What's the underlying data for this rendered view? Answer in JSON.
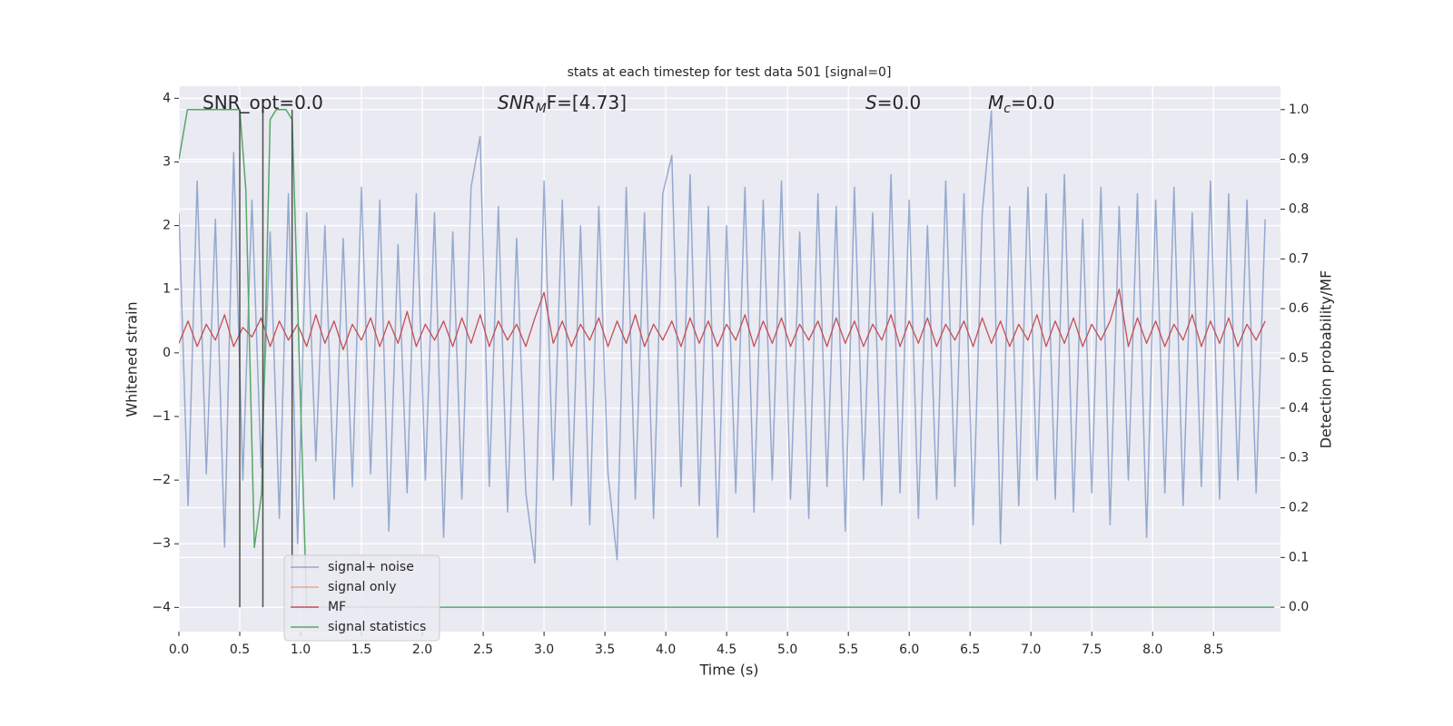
{
  "chart_data": {
    "type": "line",
    "title": "stats at each timestep for test data 501 [signal=0]",
    "xlabel": "Time (s)",
    "ylabel": "Whitened strain",
    "y2label": "Detection probability/MF",
    "grid": true,
    "legend": "lower left",
    "xlim": [
      0,
      9.05
    ],
    "ylim": [
      -4.38,
      4.19
    ],
    "y2lim": [
      -0.049,
      1.047
    ],
    "xticks": [
      {
        "value": 0,
        "label": "0.0"
      },
      {
        "value": 0.5,
        "label": "0.5"
      },
      {
        "value": 1,
        "label": "1.0"
      },
      {
        "value": 1.5,
        "label": "1.5"
      },
      {
        "value": 2,
        "label": "2.0"
      },
      {
        "value": 2.5,
        "label": "2.5"
      },
      {
        "value": 3,
        "label": "3.0"
      },
      {
        "value": 3.5,
        "label": "3.5"
      },
      {
        "value": 4,
        "label": "4.0"
      },
      {
        "value": 4.5,
        "label": "4.5"
      },
      {
        "value": 5,
        "label": "5.0"
      },
      {
        "value": 5.5,
        "label": "5.5"
      },
      {
        "value": 6,
        "label": "6.0"
      },
      {
        "value": 6.5,
        "label": "6.5"
      },
      {
        "value": 7,
        "label": "7.0"
      },
      {
        "value": 7.5,
        "label": "7.5"
      },
      {
        "value": 8,
        "label": "8.0"
      },
      {
        "value": 8.5,
        "label": "8.5"
      }
    ],
    "yticks": [
      {
        "value": -4,
        "label": "−4"
      },
      {
        "value": -3,
        "label": "−3"
      },
      {
        "value": -2,
        "label": "−2"
      },
      {
        "value": -1,
        "label": "−1"
      },
      0,
      1,
      2,
      3,
      4
    ],
    "y2ticks": [
      {
        "value": 0,
        "label": "0.0"
      },
      {
        "value": 0.1,
        "label": "0.1"
      },
      {
        "value": 0.2,
        "label": "0.2"
      },
      {
        "value": 0.3,
        "label": "0.3"
      },
      {
        "value": 0.4,
        "label": "0.4"
      },
      {
        "value": 0.5,
        "label": "0.5"
      },
      {
        "value": 0.6,
        "label": "0.6"
      },
      {
        "value": 0.7,
        "label": "0.7"
      },
      {
        "value": 0.8,
        "label": "0.8"
      },
      {
        "value": 0.9,
        "label": "0.9"
      },
      {
        "value": 1,
        "label": "1.0"
      }
    ],
    "annotations": [
      {
        "main": "SNR_opt=0.0",
        "italic": false
      },
      {
        "main": "SNR",
        "sub": "M",
        "rest": "F=[4.73]",
        "italic": true
      },
      {
        "main": "S",
        "rest": "=0.0",
        "italic": true
      },
      {
        "main": "M",
        "sub": "c",
        "rest": "=0.0",
        "italic": true
      }
    ],
    "vlines": {
      "x": [
        0.5,
        0.69,
        0.93
      ],
      "ymin": 0,
      "ymax": 1,
      "color": "#333333",
      "axis": "y2"
    },
    "x": [
      0,
      0.075,
      0.15,
      0.225,
      0.3,
      0.375,
      0.45,
      0.525,
      0.6,
      0.675,
      0.75,
      0.825,
      0.9,
      0.975,
      1.05,
      1.125,
      1.2,
      1.275,
      1.35,
      1.425,
      1.5,
      1.575,
      1.65,
      1.725,
      1.8,
      1.875,
      1.95,
      2.025,
      2.1,
      2.175,
      2.25,
      2.325,
      2.4,
      2.475,
      2.55,
      2.625,
      2.7,
      2.775,
      2.85,
      2.925,
      3,
      3.075,
      3.15,
      3.225,
      3.3,
      3.375,
      3.45,
      3.525,
      3.6,
      3.675,
      3.75,
      3.825,
      3.9,
      3.975,
      4.05,
      4.125,
      4.2,
      4.275,
      4.35,
      4.425,
      4.5,
      4.575,
      4.65,
      4.725,
      4.8,
      4.875,
      4.95,
      5.025,
      5.1,
      5.175,
      5.25,
      5.325,
      5.4,
      5.475,
      5.55,
      5.625,
      5.7,
      5.775,
      5.85,
      5.925,
      6,
      6.075,
      6.15,
      6.225,
      6.3,
      6.375,
      6.45,
      6.525,
      6.6,
      6.675,
      6.75,
      6.825,
      6.9,
      6.975,
      7.05,
      7.125,
      7.2,
      7.275,
      7.35,
      7.425,
      7.5,
      7.575,
      7.65,
      7.725,
      7.8,
      7.875,
      7.95,
      8.025,
      8.1,
      8.175,
      8.25,
      8.325,
      8.4,
      8.475,
      8.55,
      8.625,
      8.7,
      8.775,
      8.85,
      8.925
    ],
    "series": [
      {
        "name": "signal+ noise",
        "color": "#4c72b0",
        "values": [
          2.2,
          -2.4,
          2.7,
          -1.9,
          2.1,
          -3.05,
          3.15,
          -2.0,
          2.4,
          -1.8,
          1.9,
          -2.6,
          2.5,
          -3.0,
          2.2,
          -1.7,
          2.0,
          -2.3,
          1.8,
          -2.1,
          2.6,
          -1.9,
          2.4,
          -2.8,
          1.7,
          -2.2,
          2.5,
          -2.0,
          2.2,
          -2.9,
          1.9,
          -2.3,
          2.6,
          3.4,
          -2.1,
          2.3,
          -2.5,
          1.8,
          -2.2,
          -3.3,
          2.7,
          -2.0,
          2.4,
          -2.4,
          2.0,
          -2.7,
          2.3,
          -1.9,
          -3.25,
          2.6,
          -2.3,
          2.2,
          -2.6,
          2.5,
          3.1,
          -2.1,
          2.8,
          -2.4,
          2.3,
          -2.9,
          2.0,
          -2.2,
          2.6,
          -2.5,
          2.4,
          -2.0,
          2.7,
          -2.3,
          1.9,
          -2.6,
          2.5,
          -2.1,
          2.3,
          -2.8,
          2.6,
          -2.0,
          2.2,
          -2.4,
          2.8,
          -2.2,
          2.4,
          -2.6,
          2.0,
          -2.3,
          2.7,
          -2.1,
          2.5,
          -2.7,
          2.2,
          3.8,
          -3.0,
          2.3,
          -2.4,
          2.6,
          -2.0,
          2.5,
          -2.3,
          2.8,
          -2.5,
          2.1,
          -2.2,
          2.6,
          -2.7,
          2.3,
          -2.0,
          2.5,
          -2.9,
          2.4,
          -2.2,
          2.6,
          -2.4,
          2.2,
          -2.1,
          2.7,
          -2.3,
          2.5,
          -2.0,
          2.4,
          -2.2,
          2.1
        ]
      },
      {
        "name": "signal only",
        "color": "#dd8452",
        "values": [
          null,
          null,
          null,
          null,
          null,
          null,
          null,
          null,
          null,
          null,
          null,
          null,
          null,
          null,
          null,
          null,
          null,
          null,
          null,
          null,
          null,
          null,
          null,
          null,
          null,
          null,
          null,
          null,
          null,
          null,
          null,
          null,
          null,
          null,
          null,
          null,
          null,
          null,
          null,
          null,
          null,
          null,
          null,
          null,
          null,
          null,
          null,
          null,
          null,
          null,
          null,
          null,
          null,
          null,
          null,
          null,
          null,
          null,
          null,
          null,
          null,
          null,
          null,
          null,
          null,
          null,
          null,
          null,
          null,
          null,
          null,
          null,
          null,
          null,
          null,
          null,
          null,
          null,
          null,
          null,
          null,
          null,
          null,
          null,
          null,
          null,
          null,
          null,
          null,
          null,
          null,
          null,
          null,
          null,
          null,
          null,
          null,
          null,
          null,
          null,
          null,
          null,
          null,
          null,
          null,
          null,
          null,
          null,
          null,
          null,
          null,
          null,
          null,
          null,
          null,
          null,
          null,
          null,
          null,
          null
        ]
      },
      {
        "name": "MF",
        "color": "#c44e52",
        "values": [
          0.15,
          0.5,
          0.1,
          0.45,
          0.2,
          0.6,
          0.1,
          0.4,
          0.25,
          0.55,
          0.1,
          0.5,
          0.2,
          0.45,
          0.1,
          0.6,
          0.15,
          0.5,
          0.05,
          0.45,
          0.2,
          0.55,
          0.1,
          0.5,
          0.15,
          0.65,
          0.1,
          0.45,
          0.2,
          0.5,
          0.1,
          0.55,
          0.15,
          0.6,
          0.1,
          0.5,
          0.2,
          0.45,
          0.1,
          0.55,
          0.95,
          0.15,
          0.5,
          0.1,
          0.45,
          0.2,
          0.55,
          0.1,
          0.5,
          0.15,
          0.6,
          0.1,
          0.45,
          0.2,
          0.5,
          0.1,
          0.55,
          0.15,
          0.5,
          0.1,
          0.45,
          0.2,
          0.6,
          0.1,
          0.5,
          0.15,
          0.55,
          0.1,
          0.45,
          0.2,
          0.5,
          0.1,
          0.55,
          0.15,
          0.5,
          0.1,
          0.45,
          0.2,
          0.6,
          0.1,
          0.5,
          0.15,
          0.55,
          0.1,
          0.45,
          0.2,
          0.5,
          0.1,
          0.55,
          0.15,
          0.5,
          0.1,
          0.45,
          0.2,
          0.6,
          0.1,
          0.5,
          0.15,
          0.55,
          0.1,
          0.45,
          0.2,
          0.5,
          1.0,
          0.1,
          0.55,
          0.15,
          0.5,
          0.1,
          0.45,
          0.2,
          0.6,
          0.1,
          0.5,
          0.15,
          0.55,
          0.1,
          0.45,
          0.2,
          0.5
        ]
      },
      {
        "name": "signal statistics",
        "color": "#55a868",
        "axis": "y2",
        "x": [
          0,
          0.07,
          0.5,
          0.55,
          0.62,
          0.68,
          0.75,
          0.8,
          0.88,
          0.93,
          1.05,
          9.0
        ],
        "values": [
          0.9,
          1.0,
          1.0,
          0.84,
          0.12,
          0.23,
          0.98,
          1.0,
          1.0,
          0.98,
          0,
          0
        ]
      }
    ]
  }
}
